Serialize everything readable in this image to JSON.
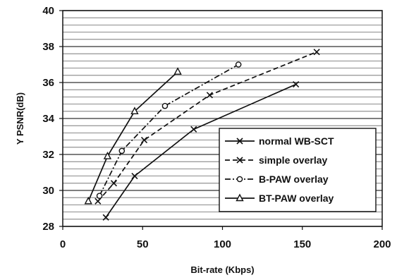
{
  "chart_data": {
    "type": "line",
    "title": "",
    "xlabel": "Bit-rate (Kbps)",
    "ylabel": "Y PSNR(dB)",
    "xlim": [
      0,
      200
    ],
    "ylim": [
      28,
      40
    ],
    "xticks": [
      "0",
      "50",
      "100",
      "150",
      "200"
    ],
    "yticks": [
      "28",
      "30",
      "32",
      "34",
      "36",
      "38",
      "40"
    ],
    "grid": true,
    "legend_position": "lower-right",
    "series": [
      {
        "name": "normal WB-SCT",
        "marker": "x",
        "dash": "solid",
        "x": [
          27,
          45,
          82,
          146
        ],
        "y": [
          28.5,
          30.8,
          33.4,
          35.9
        ]
      },
      {
        "name": "simple overlay",
        "marker": "x",
        "dash": "dashed",
        "x": [
          22,
          32,
          51,
          92,
          159
        ],
        "y": [
          29.4,
          30.4,
          32.8,
          35.3,
          37.7
        ]
      },
      {
        "name": "B-PAW overlay",
        "marker": "o",
        "dash": "dashdot",
        "x": [
          23,
          37,
          64,
          110
        ],
        "y": [
          29.7,
          32.2,
          34.7,
          37.0
        ]
      },
      {
        "name": "BT-PAW overlay",
        "marker": "triangle",
        "dash": "solid",
        "x": [
          16,
          28,
          45,
          72
        ],
        "y": [
          29.4,
          31.9,
          34.4,
          36.6
        ]
      }
    ]
  }
}
